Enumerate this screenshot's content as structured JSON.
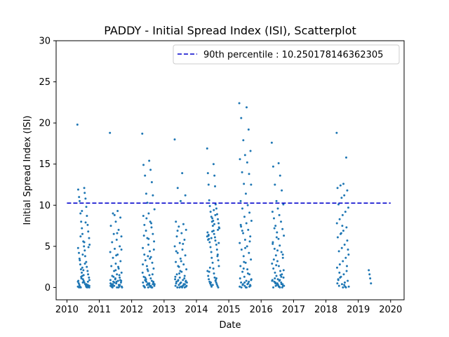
{
  "chart_data": {
    "type": "scatter",
    "title": "PADDY - Initial Spread Index (ISI), Scatterplot",
    "xlabel": "Date",
    "ylabel": "Initial Spread Index (ISI)",
    "x_ticks": [
      "2010",
      "2011",
      "2012",
      "2013",
      "2014",
      "2015",
      "2016",
      "2017",
      "2018",
      "2019",
      "2020"
    ],
    "y_ticks": [
      "0",
      "5",
      "10",
      "15",
      "20",
      "25",
      "30"
    ],
    "ylim": [
      -1.5,
      30
    ],
    "xlim": [
      "2009-09-01",
      "2020-06-01"
    ],
    "grid": false,
    "legend_position": "top-right",
    "point_color": "#1f77b4",
    "reference_line": {
      "label": "90th percentile : 10.250178146362305",
      "value": 10.250178146362305,
      "color": "#0000cc",
      "style": "dashed",
      "x_start": "2010-01-01",
      "x_end": "2020-01-01"
    },
    "series": [
      {
        "clusters": [
          {
            "start": "2010-05-01",
            "end": "2010-09-15",
            "values": [
              19.8,
              12.1,
              11.9,
              11.5,
              11.0,
              10.8,
              10.5,
              9.8,
              9.0,
              8.7,
              8.0,
              7.6,
              7.2,
              6.8,
              6.5,
              6.0,
              5.6,
              5.2,
              5.0,
              4.8,
              4.5,
              4.2,
              3.8,
              3.5,
              3.1,
              2.8,
              2.5,
              2.2,
              2.0,
              1.8,
              1.6,
              1.4,
              1.2,
              1.0,
              0.9,
              0.8,
              0.7,
              0.6,
              0.5,
              0.4,
              0.3,
              0.2,
              0.1,
              0.05,
              0.0,
              0.0,
              1.1,
              0.3,
              2.4,
              4.9,
              0.6,
              0.2,
              1.5,
              0.1,
              5.5,
              0.8,
              2.9,
              0.0,
              7.9,
              3.3,
              0.4,
              6.2,
              0.2,
              1.3,
              0.7,
              9.3,
              0.1,
              4.0,
              0.0,
              2.1
            ]
          },
          {
            "start": "2011-05-01",
            "end": "2011-09-15",
            "values": [
              18.8,
              9.3,
              9.0,
              8.5,
              8.0,
              7.5,
              7.0,
              6.5,
              6.2,
              5.8,
              5.5,
              5.0,
              4.7,
              4.3,
              4.0,
              3.6,
              3.2,
              2.9,
              2.6,
              2.3,
              2.0,
              1.8,
              1.6,
              1.4,
              1.2,
              1.0,
              0.9,
              0.8,
              0.7,
              0.6,
              0.5,
              0.4,
              0.3,
              0.2,
              0.1,
              0.0,
              0.0,
              0.3,
              1.1,
              0.5,
              2.5,
              0.2,
              0.8,
              3.9,
              0.1,
              1.5,
              0.6,
              0.0,
              6.6,
              0.4,
              0.9,
              2.1,
              0.2,
              0.0,
              1.3,
              4.6,
              0.7,
              0.3,
              0.1,
              8.8
            ]
          },
          {
            "start": "2012-05-01",
            "end": "2012-09-15",
            "values": [
              18.7,
              15.4,
              14.9,
              14.3,
              13.6,
              12.8,
              11.4,
              11.2,
              10.3,
              9.5,
              9.0,
              8.7,
              8.0,
              7.6,
              7.3,
              6.9,
              6.5,
              6.0,
              5.6,
              5.2,
              4.8,
              4.4,
              4.0,
              3.7,
              3.3,
              3.0,
              2.6,
              2.3,
              2.0,
              1.8,
              1.5,
              1.3,
              1.1,
              0.9,
              0.8,
              0.7,
              0.6,
              0.5,
              0.4,
              0.3,
              0.2,
              0.1,
              0.0,
              0.0,
              1.0,
              0.4,
              2.2,
              0.2,
              5.9,
              0.6,
              3.5,
              0.1,
              7.8,
              0.8,
              1.6,
              0.3,
              4.6,
              0.0,
              2.8,
              0.5,
              6.3,
              0.2,
              1.2,
              0.0,
              8.4,
              0.7,
              3.8
            ]
          },
          {
            "start": "2013-05-01",
            "end": "2013-09-15",
            "values": [
              18.0,
              13.9,
              12.1,
              11.2,
              10.5,
              8.0,
              7.7,
              7.4,
              7.0,
              6.6,
              6.2,
              5.8,
              5.4,
              5.0,
              4.6,
              4.2,
              3.9,
              3.5,
              3.1,
              2.8,
              2.5,
              2.2,
              1.9,
              1.6,
              1.4,
              1.2,
              1.0,
              0.9,
              0.8,
              0.7,
              0.6,
              0.5,
              0.4,
              0.3,
              0.2,
              0.1,
              0.0,
              0.0,
              0.5,
              1.3,
              0.2,
              2.6,
              0.8,
              0.1,
              4.4,
              0.3,
              1.7,
              0.6,
              0.0,
              6.9,
              0.4,
              2.0,
              0.2,
              5.3,
              0.9,
              0.1,
              3.2,
              0.7,
              1.1,
              0.0
            ]
          },
          {
            "start": "2014-05-01",
            "end": "2014-09-15",
            "values": [
              16.9,
              15.0,
              13.9,
              13.6,
              12.5,
              12.3,
              10.6,
              10.1,
              9.9,
              9.6,
              9.2,
              8.9,
              8.6,
              8.3,
              8.0,
              7.8,
              7.5,
              7.2,
              6.9,
              6.7,
              6.5,
              6.3,
              6.1,
              5.9,
              5.7,
              5.5,
              5.2,
              4.9,
              4.6,
              4.3,
              4.0,
              3.6,
              3.3,
              3.0,
              2.6,
              2.3,
              2.0,
              1.7,
              1.4,
              1.2,
              1.0,
              0.8,
              0.7,
              0.6,
              0.5,
              0.4,
              0.3,
              0.2,
              0.1,
              0.0,
              6.8,
              7.3,
              8.1,
              6.2,
              9.4,
              5.8,
              7.7,
              6.4,
              8.8,
              1.9,
              0.9,
              2.4,
              1.1,
              0.6,
              3.8,
              6.0,
              7.0,
              8.4,
              5.4,
              0.3
            ]
          },
          {
            "start": "2015-05-01",
            "end": "2015-09-15",
            "values": [
              22.4,
              21.9,
              20.6,
              19.2,
              17.9,
              16.6,
              16.1,
              15.6,
              15.2,
              14.0,
              13.8,
              12.6,
              12.5,
              11.4,
              10.5,
              10.0,
              9.6,
              9.1,
              8.6,
              8.1,
              7.8,
              7.4,
              7.0,
              6.6,
              6.2,
              5.8,
              5.4,
              5.0,
              4.6,
              4.2,
              3.8,
              3.4,
              3.0,
              2.6,
              2.2,
              1.9,
              1.6,
              1.3,
              1.0,
              0.8,
              0.6,
              0.5,
              0.4,
              0.3,
              0.2,
              0.1,
              0.0,
              0.0,
              0.7,
              2.3,
              0.2,
              4.8,
              1.1,
              0.4,
              6.9,
              0.1,
              3.1,
              0.9,
              0.0,
              7.6,
              1.7,
              0.3,
              5.6,
              0.6
            ]
          },
          {
            "start": "2016-05-01",
            "end": "2016-09-15",
            "values": [
              17.6,
              15.1,
              14.7,
              13.6,
              12.5,
              11.8,
              10.5,
              10.1,
              9.6,
              9.2,
              8.8,
              8.4,
              8.0,
              7.5,
              7.1,
              6.7,
              6.3,
              5.9,
              5.5,
              5.1,
              4.7,
              4.3,
              3.9,
              3.6,
              3.2,
              2.9,
              2.6,
              2.3,
              2.0,
              1.8,
              1.6,
              1.4,
              1.2,
              1.0,
              0.9,
              0.8,
              0.7,
              0.6,
              0.5,
              0.4,
              0.3,
              0.2,
              0.1,
              0.0,
              0.0,
              1.1,
              0.4,
              2.7,
              0.2,
              4.5,
              0.8,
              0.1,
              3.4,
              1.5,
              0.6,
              0.0,
              6.1,
              2.1,
              0.3,
              5.3,
              0.9,
              7.2,
              1.3,
              0.2,
              4.0,
              0.5
            ]
          },
          {
            "start": "2018-05-01",
            "end": "2018-09-15",
            "values": [
              18.8,
              15.8,
              12.6,
              12.4,
              12.1,
              11.8,
              11.2,
              10.9,
              10.1,
              9.7,
              9.2,
              8.8,
              8.3,
              7.8,
              7.3,
              6.9,
              6.5,
              6.1,
              5.7,
              5.2,
              4.8,
              4.4,
              4.0,
              3.6,
              3.2,
              2.8,
              2.4,
              2.0,
              1.6,
              1.3,
              1.0,
              0.8,
              0.6,
              0.4,
              0.2,
              0.1,
              0.0,
              0.0,
              1.2,
              0.5,
              2.6,
              0.3,
              6.6,
              0.9,
              4.6,
              0.1,
              7.5,
              1.8
            ]
          },
          {
            "start": "2019-05-01",
            "end": "2019-05-25",
            "values": [
              2.1,
              1.6,
              1.1,
              0.5
            ]
          }
        ]
      }
    ]
  }
}
